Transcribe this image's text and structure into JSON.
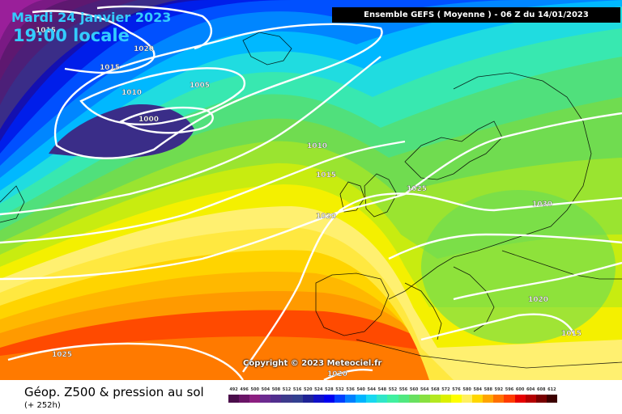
{
  "header": {
    "date": "Mardi 24 janvier 2023",
    "local_time": "19:00 locale",
    "run_info": "Ensemble GEFS  ( Moyenne )  -  06 Z du 14/01/2023"
  },
  "copyright": "Copyright © 2023 Meteociel.fr",
  "footer": {
    "title": "Géop. Z500 & pression au sol",
    "subtitle": "(+ 252h)"
  },
  "legend": {
    "labels": [
      "492",
      "496",
      "500",
      "504",
      "508",
      "512",
      "516",
      "520",
      "524",
      "528",
      "532",
      "536",
      "540",
      "544",
      "548",
      "552",
      "556",
      "560",
      "564",
      "568",
      "572",
      "576",
      "580",
      "584",
      "588",
      "592",
      "596",
      "600",
      "604",
      "608",
      "612"
    ],
    "colors": [
      "#4a0d4a",
      "#6a1466",
      "#8c1f80",
      "#6c2a90",
      "#512e8e",
      "#3d3a8c",
      "#323f90",
      "#1e2296",
      "#1010c8",
      "#0000f0",
      "#0040ff",
      "#0080ff",
      "#00b4ff",
      "#18d8f0",
      "#30e6c8",
      "#40f0a0",
      "#50e880",
      "#68e060",
      "#88e040",
      "#b4e820",
      "#dcf000",
      "#ffff00",
      "#fff060",
      "#ffd700",
      "#ffa500",
      "#ff7000",
      "#ff3c00",
      "#e60000",
      "#b40000",
      "#780000",
      "#3c0000"
    ]
  },
  "isobars": {
    "labels": [
      "1015",
      "1020",
      "1015",
      "1005",
      "1010",
      "1000",
      "1010",
      "1015",
      "1020",
      "1025",
      "1030",
      "1020",
      "1015",
      "1025",
      "1020"
    ]
  }
}
